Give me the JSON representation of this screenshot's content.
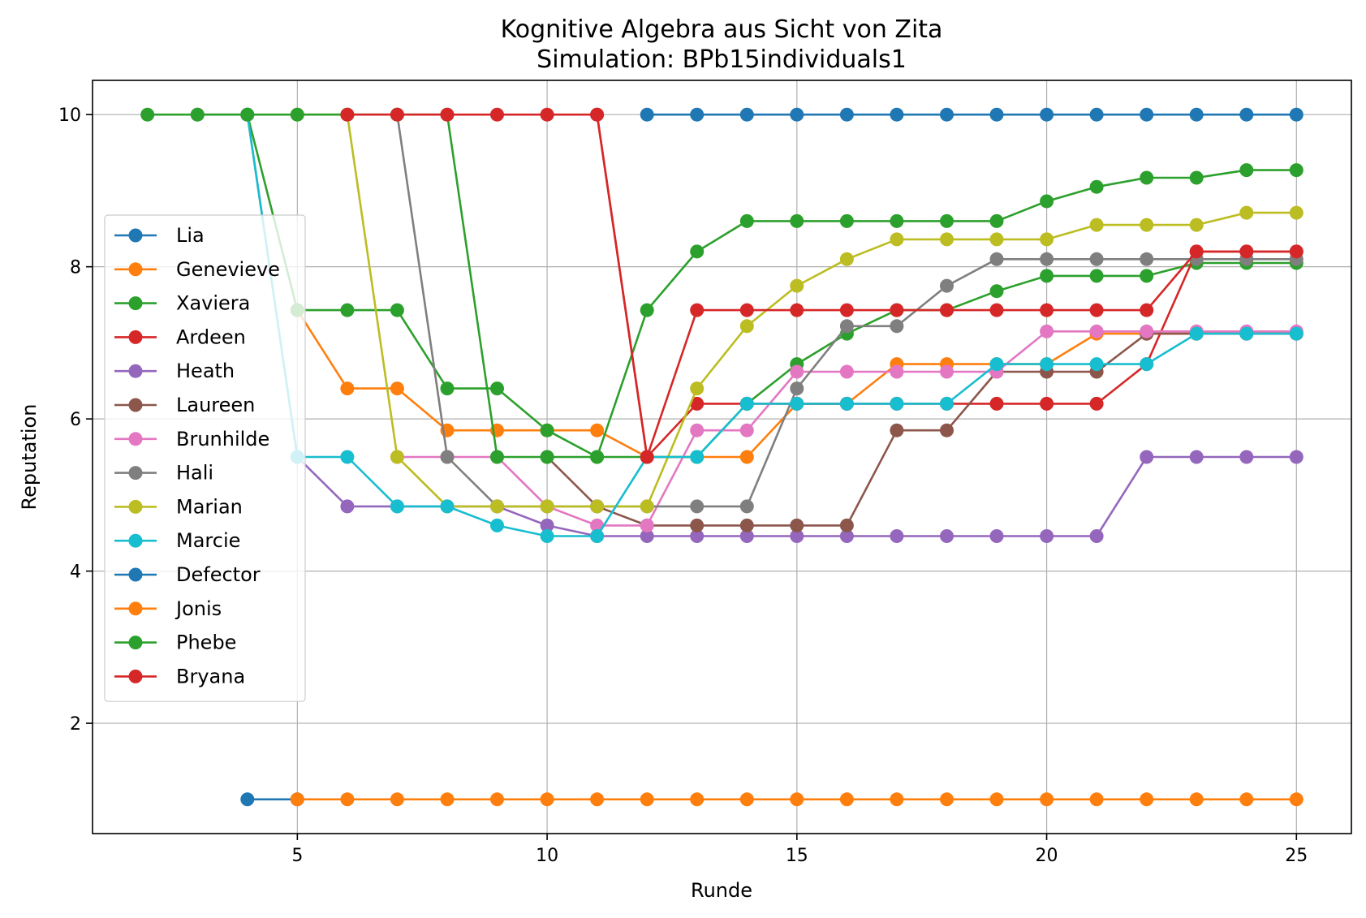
{
  "chart_data": {
    "type": "line",
    "title": "Kognitive Algebra aus Sicht von Zita",
    "subtitle": "Simulation: BPb15individuals1",
    "xlabel": "Runde",
    "ylabel": "Reputation",
    "xlim": [
      0.9,
      26.1
    ],
    "ylim": [
      0.55,
      10.45
    ],
    "xticks": [
      5,
      10,
      15,
      20,
      25
    ],
    "yticks": [
      2,
      4,
      6,
      8,
      10
    ],
    "grid": true,
    "legend_position": "center-left",
    "series": [
      {
        "name": "Lia",
        "color": "#1f77b4",
        "x": [
          12,
          13,
          14,
          15,
          16,
          17,
          18,
          19,
          20,
          21,
          22,
          23,
          24,
          25
        ],
        "y": [
          10,
          10,
          10,
          10,
          10,
          10,
          10,
          10,
          10,
          10,
          10,
          10,
          10,
          10
        ]
      },
      {
        "name": "Genevieve",
        "color": "#ff7f0e",
        "x": [
          5,
          6,
          7,
          8,
          9,
          10,
          11,
          12,
          13,
          14,
          15,
          16,
          17,
          18,
          19,
          20,
          21,
          22,
          23,
          24,
          25
        ],
        "y": [
          7.43,
          6.4,
          6.4,
          5.85,
          5.85,
          5.85,
          5.85,
          5.5,
          5.5,
          5.5,
          6.2,
          6.2,
          6.72,
          6.72,
          6.72,
          6.72,
          7.12,
          7.12,
          7.12,
          7.12,
          7.12
        ]
      },
      {
        "name": "Xaviera",
        "color": "#2ca02c",
        "x": [
          4,
          5,
          6,
          7,
          8,
          9,
          10,
          11,
          12,
          13,
          14,
          15,
          16,
          17,
          18,
          19,
          20,
          21,
          22,
          23,
          24,
          25
        ],
        "y": [
          10,
          7.43,
          7.43,
          7.43,
          6.4,
          6.4,
          5.85,
          5.5,
          5.5,
          5.5,
          6.2,
          6.72,
          7.12,
          7.43,
          7.43,
          7.68,
          7.88,
          7.88,
          7.88,
          8.05,
          8.05,
          8.05
        ]
      },
      {
        "name": "Ardeen",
        "color": "#d62728",
        "x": [
          11,
          12,
          13,
          14,
          15,
          16,
          17,
          18,
          19,
          20,
          21,
          22,
          23,
          24,
          25
        ],
        "y": [
          10,
          5.5,
          6.2,
          6.2,
          6.2,
          6.2,
          6.2,
          6.2,
          6.2,
          6.2,
          6.2,
          6.72,
          8.2,
          8.2,
          8.2
        ]
      },
      {
        "name": "Heath",
        "color": "#9467bd",
        "x": [
          3,
          4,
          5,
          6,
          7,
          8,
          9,
          10,
          11,
          12,
          13,
          14,
          15,
          16,
          17,
          18,
          19,
          20,
          21,
          22,
          23,
          24,
          25
        ],
        "y": [
          10,
          10,
          5.5,
          4.85,
          4.85,
          4.85,
          4.85,
          4.6,
          4.46,
          4.46,
          4.46,
          4.46,
          4.46,
          4.46,
          4.46,
          4.46,
          4.46,
          4.46,
          4.46,
          5.5,
          5.5,
          5.5,
          5.5
        ]
      },
      {
        "name": "Laureen",
        "color": "#8c564b",
        "x": [
          10,
          11,
          12,
          13,
          14,
          15,
          16,
          17,
          18,
          19,
          20,
          21,
          22,
          23,
          24,
          25
        ],
        "y": [
          5.5,
          4.85,
          4.6,
          4.6,
          4.6,
          4.6,
          4.6,
          5.85,
          5.85,
          6.62,
          6.62,
          6.62,
          7.12,
          7.12,
          7.12,
          7.12
        ]
      },
      {
        "name": "Brunhilde",
        "color": "#e377c2",
        "x": [
          7,
          8,
          9,
          10,
          11,
          12,
          13,
          14,
          15,
          16,
          17,
          18,
          19,
          20,
          21,
          22,
          23,
          24,
          25
        ],
        "y": [
          5.5,
          5.5,
          5.5,
          4.85,
          4.6,
          4.6,
          5.85,
          5.85,
          6.62,
          6.62,
          6.62,
          6.62,
          6.62,
          7.15,
          7.15,
          7.15,
          7.15,
          7.15,
          7.15
        ]
      },
      {
        "name": "Hali",
        "color": "#7f7f7f",
        "x": [
          7,
          8,
          9,
          10,
          11,
          12,
          13,
          14,
          15,
          16,
          17,
          18,
          19,
          20,
          21,
          22,
          23,
          24,
          25
        ],
        "y": [
          10,
          5.5,
          4.85,
          4.85,
          4.85,
          4.85,
          4.85,
          4.85,
          6.4,
          7.22,
          7.22,
          7.75,
          8.1,
          8.1,
          8.1,
          8.1,
          8.1,
          8.1,
          8.1
        ]
      },
      {
        "name": "Marian",
        "color": "#bcbd22",
        "x": [
          5,
          6,
          7,
          8,
          9,
          10,
          11,
          12,
          13,
          14,
          15,
          16,
          17,
          18,
          19,
          20,
          21,
          22,
          23,
          24,
          25
        ],
        "y": [
          10,
          10,
          5.5,
          4.85,
          4.85,
          4.85,
          4.85,
          4.85,
          6.4,
          7.22,
          7.75,
          8.1,
          8.36,
          8.36,
          8.36,
          8.36,
          8.55,
          8.55,
          8.55,
          8.71,
          8.71
        ]
      },
      {
        "name": "Marcie",
        "color": "#17becf",
        "x": [
          4,
          5,
          6,
          7,
          8,
          9,
          10,
          11,
          12,
          13,
          14,
          15,
          16,
          17,
          18,
          19,
          20,
          21,
          22,
          23,
          24,
          25
        ],
        "y": [
          10,
          5.5,
          5.5,
          4.85,
          4.85,
          4.6,
          4.46,
          4.46,
          5.5,
          5.5,
          6.2,
          6.2,
          6.2,
          6.2,
          6.2,
          6.72,
          6.72,
          6.72,
          6.72,
          7.12,
          7.12,
          7.12
        ]
      },
      {
        "name": "Defector",
        "color": "#1f77b4",
        "x": [
          4,
          5
        ],
        "y": [
          1,
          1
        ]
      },
      {
        "name": "Jonis",
        "color": "#ff7f0e",
        "x": [
          5,
          6,
          7,
          8,
          9,
          10,
          11,
          12,
          13,
          14,
          15,
          16,
          17,
          18,
          19,
          20,
          21,
          22,
          23,
          24,
          25
        ],
        "y": [
          1,
          1,
          1,
          1,
          1,
          1,
          1,
          1,
          1,
          1,
          1,
          1,
          1,
          1,
          1,
          1,
          1,
          1,
          1,
          1,
          1
        ]
      },
      {
        "name": "Phebe",
        "color": "#2ca02c",
        "x": [
          2,
          3,
          4,
          5,
          6,
          7,
          8,
          9,
          10,
          11,
          12,
          13,
          14,
          15,
          16,
          17,
          18,
          19,
          20,
          21,
          22,
          23,
          24,
          25
        ],
        "y": [
          10,
          10,
          10,
          10,
          10,
          10,
          10,
          5.5,
          5.5,
          5.5,
          7.43,
          8.2,
          8.6,
          8.6,
          8.6,
          8.6,
          8.6,
          8.6,
          8.86,
          9.05,
          9.17,
          9.17,
          9.27,
          9.27
        ]
      },
      {
        "name": "Bryana",
        "color": "#d62728",
        "x": [
          6,
          7,
          8,
          9,
          10,
          11,
          12,
          13,
          14,
          15,
          16,
          17,
          18,
          19,
          20,
          21,
          22,
          23,
          24,
          25
        ],
        "y": [
          10,
          10,
          10,
          10,
          10,
          10,
          5.5,
          7.43,
          7.43,
          7.43,
          7.43,
          7.43,
          7.43,
          7.43,
          7.43,
          7.43,
          7.43,
          8.2,
          8.2,
          8.2
        ]
      }
    ]
  }
}
